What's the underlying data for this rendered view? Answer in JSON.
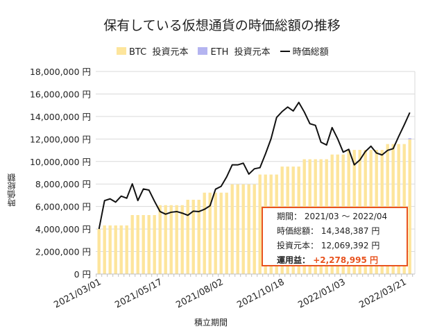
{
  "chart_data": {
    "type": "bar",
    "title": "保有している仮想通貨の時価総額の推移",
    "xlabel": "積立期間",
    "ylabel": "時価総額",
    "ylim": [
      0,
      18000000
    ],
    "y_ticks": [
      "0 円",
      "2,000,000 円",
      "4,000,000 円",
      "6,000,000 円",
      "8,000,000 円",
      "10,000,000 円",
      "12,000,000 円",
      "14,000,000 円",
      "16,000,000 円",
      "18,000,000 円"
    ],
    "x_tick_labels_shown": [
      "2021/03/01",
      "2021/05/17",
      "2021/08/02",
      "2021/10/18",
      "2022/01/03",
      "2022/03/21"
    ],
    "grid": true,
    "legend_position": "top",
    "categories": [
      "2021/03/01",
      "2021/03/08",
      "2021/03/15",
      "2021/03/22",
      "2021/03/29",
      "2021/04/05",
      "2021/04/12",
      "2021/04/19",
      "2021/04/26",
      "2021/05/03",
      "2021/05/10",
      "2021/05/17",
      "2021/05/24",
      "2021/05/31",
      "2021/06/07",
      "2021/06/14",
      "2021/06/21",
      "2021/06/28",
      "2021/07/05",
      "2021/07/12",
      "2021/07/19",
      "2021/07/26",
      "2021/08/02",
      "2021/08/09",
      "2021/08/16",
      "2021/08/23",
      "2021/08/30",
      "2021/09/06",
      "2021/09/13",
      "2021/09/20",
      "2021/09/27",
      "2021/10/04",
      "2021/10/11",
      "2021/10/18",
      "2021/10/25",
      "2021/11/01",
      "2021/11/08",
      "2021/11/15",
      "2021/11/22",
      "2021/11/29",
      "2021/12/06",
      "2021/12/13",
      "2021/12/20",
      "2021/12/27",
      "2022/01/03",
      "2022/01/10",
      "2022/01/17",
      "2022/01/24",
      "2022/01/31",
      "2022/02/07",
      "2022/02/14",
      "2022/02/21",
      "2022/02/28",
      "2022/03/07",
      "2022/03/14",
      "2022/03/21",
      "2022/03/28"
    ],
    "series": [
      {
        "name": "BTC  投資元本",
        "type": "bar",
        "color": "#fde59c",
        "values": [
          4000000,
          4320000,
          4320000,
          4320000,
          4320000,
          4320000,
          5240000,
          5240000,
          5240000,
          5240000,
          5240000,
          6120000,
          6120000,
          6120000,
          6120000,
          6120000,
          6600000,
          6600000,
          6600000,
          7230000,
          7230000,
          7230000,
          7230000,
          7230000,
          7970000,
          7970000,
          7970000,
          7970000,
          7970000,
          8840000,
          8840000,
          8840000,
          8840000,
          9550000,
          9550000,
          9550000,
          9550000,
          10200000,
          10200000,
          10200000,
          10200000,
          10200000,
          10620000,
          10620000,
          10620000,
          11030000,
          11030000,
          11030000,
          11030000,
          11030000,
          11030000,
          11030000,
          11550000,
          11550000,
          11550000,
          11550000,
          11970000
        ]
      },
      {
        "name": "ETH  投資元本",
        "type": "bar",
        "color": "#b4b4f0",
        "values": [
          0,
          0,
          0,
          0,
          0,
          0,
          0,
          0,
          0,
          0,
          0,
          0,
          0,
          0,
          0,
          0,
          0,
          0,
          0,
          0,
          0,
          0,
          0,
          0,
          0,
          0,
          0,
          0,
          0,
          0,
          0,
          0,
          0,
          0,
          0,
          0,
          0,
          0,
          0,
          0,
          0,
          0,
          0,
          0,
          0,
          0,
          0,
          0,
          0,
          0,
          0,
          0,
          0,
          0,
          0,
          0,
          100000
        ]
      },
      {
        "name": "時価総額",
        "type": "line",
        "color": "#111111",
        "values": [
          4000000,
          6520000,
          6680000,
          6390000,
          6920000,
          6740000,
          8010000,
          6530000,
          7560000,
          7460000,
          6470000,
          5550000,
          5320000,
          5490000,
          5550000,
          5410000,
          5220000,
          5590000,
          5550000,
          5750000,
          6060000,
          7540000,
          7790000,
          8630000,
          9700000,
          9700000,
          9850000,
          8880000,
          9350000,
          9450000,
          10680000,
          12020000,
          13910000,
          14440000,
          14840000,
          14490000,
          15250000,
          14390000,
          13360000,
          13210000,
          11710000,
          11470000,
          13010000,
          12020000,
          10830000,
          11080000,
          9700000,
          10130000,
          10890000,
          11360000,
          10750000,
          10580000,
          10990000,
          11140000,
          12230000,
          13260000,
          14348387
        ]
      }
    ]
  },
  "infobox": {
    "period_label": "期間：",
    "period_value": "2021/03 ～ 2022/04",
    "market_label": "時価総額：",
    "market_value": "14,348,387 円",
    "principal_label": "投資元本：",
    "principal_value": "12,069,392 円",
    "profit_label": "運用益：",
    "profit_value": "+2,278,995 円",
    "border_color": "#e8531f"
  }
}
